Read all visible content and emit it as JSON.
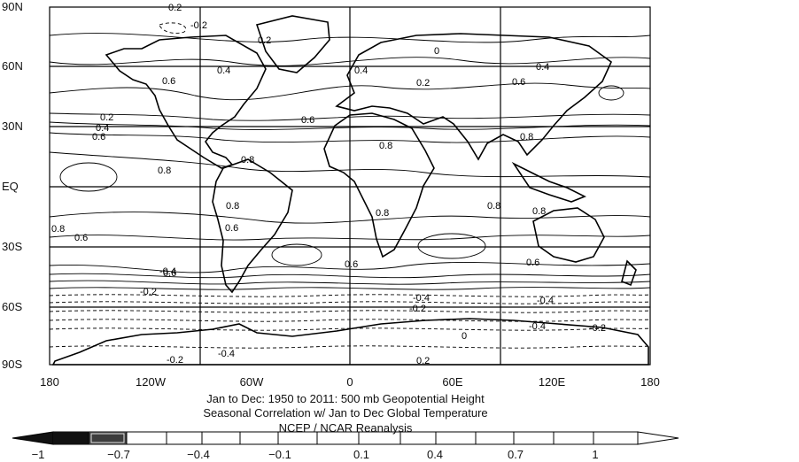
{
  "map": {
    "lat_labels": [
      "90N",
      "60N",
      "30N",
      "EQ",
      "30S",
      "60S",
      "90S"
    ],
    "lon_labels": [
      "180",
      "120W",
      "60W",
      "0",
      "60E",
      "120E",
      "180"
    ],
    "contour_labels": [
      "0.2",
      "-0.2",
      "0.2",
      "0.4",
      "0.6",
      "0.4",
      "0",
      "0.2",
      "0.4",
      "0.6",
      "0.6",
      "0.2",
      "0.4",
      "0.6",
      "0.8",
      "0.8",
      "0.8",
      "0.8",
      "0.8",
      "0.8",
      "0.8",
      "0.6",
      "0.8",
      "0.6",
      "0.8",
      "0.6",
      "0.6",
      "0.6",
      "-0.4",
      "-0.2",
      "-0.4",
      "-0.2",
      "-0.4",
      "0",
      "-0.4",
      "-0.2",
      "-0.4",
      "-0.2",
      "0.2"
    ]
  },
  "caption": {
    "line1": "Jan to Dec: 1950 to 2011: 500 mb Geopotential Height",
    "line2": "Seasonal Correlation w/ Jan to Dec Global  Temperature",
    "line3": "NCEP / NCAR Reanalysis"
  },
  "colorbar": {
    "tick_labels": [
      "−1",
      "−0.7",
      "−0.4",
      "−0.1",
      "0.1",
      "0.4",
      "0.7",
      "1"
    ],
    "range": [
      -1,
      1
    ],
    "interval": 0.1
  }
}
